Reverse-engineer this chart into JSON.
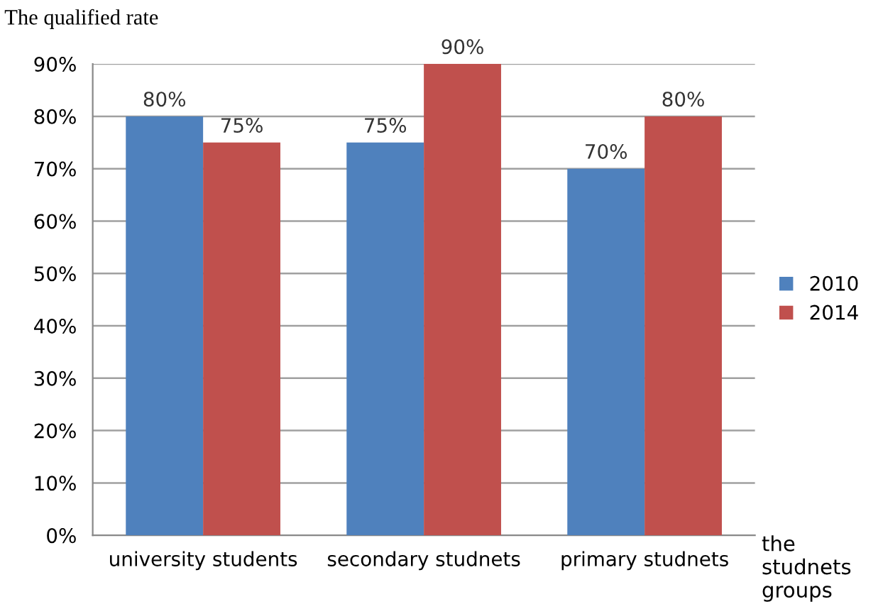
{
  "chart_data": {
    "type": "bar",
    "title": "The qualified rate",
    "xlabel": "the studnets groups",
    "categories": [
      "university students",
      "secondary studnets",
      "primary studnets"
    ],
    "series": [
      {
        "name": "2010",
        "color": "#4f81bd",
        "values": [
          80,
          75,
          70
        ],
        "value_labels": [
          "80%",
          "75%",
          "70%"
        ]
      },
      {
        "name": "2014",
        "color": "#c0504d",
        "values": [
          75,
          90,
          80
        ],
        "value_labels": [
          "75%",
          "90%",
          "80%"
        ]
      }
    ],
    "ylim": [
      0,
      90
    ],
    "yticks": [
      {
        "value": 0,
        "label": "0%"
      },
      {
        "value": 10,
        "label": "10%"
      },
      {
        "value": 20,
        "label": "20%"
      },
      {
        "value": 30,
        "label": "30%"
      },
      {
        "value": 40,
        "label": "40%"
      },
      {
        "value": 50,
        "label": "50%"
      },
      {
        "value": 60,
        "label": "60%"
      },
      {
        "value": 70,
        "label": "70%"
      },
      {
        "value": 80,
        "label": "80%"
      },
      {
        "value": 90,
        "label": "90%"
      }
    ],
    "grid": "y",
    "legend": "right"
  }
}
